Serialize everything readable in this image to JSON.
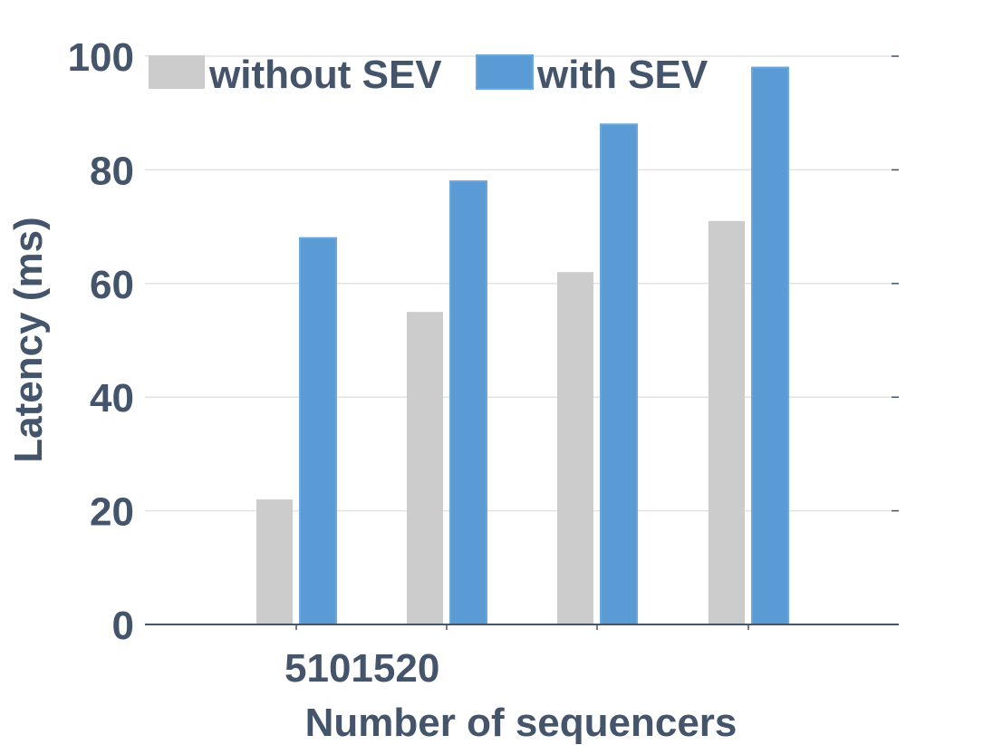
{
  "chart_data": {
    "type": "bar",
    "title": "",
    "xlabel": "Number of sequencers",
    "ylabel": "Latency (ms)",
    "x_tick_text": "5101520",
    "categories": [
      "5",
      "10",
      "15",
      "20"
    ],
    "series": [
      {
        "name": "without SEV",
        "color": "#cccccc",
        "values": [
          22,
          55,
          62,
          71
        ]
      },
      {
        "name": "with SEV",
        "color": "#5b9bd5",
        "values": [
          68,
          78,
          88,
          98
        ]
      }
    ],
    "ylim": [
      0,
      100
    ],
    "yticks": [
      0,
      20,
      40,
      60,
      80,
      100
    ],
    "grid": true,
    "legend_position": "top"
  }
}
